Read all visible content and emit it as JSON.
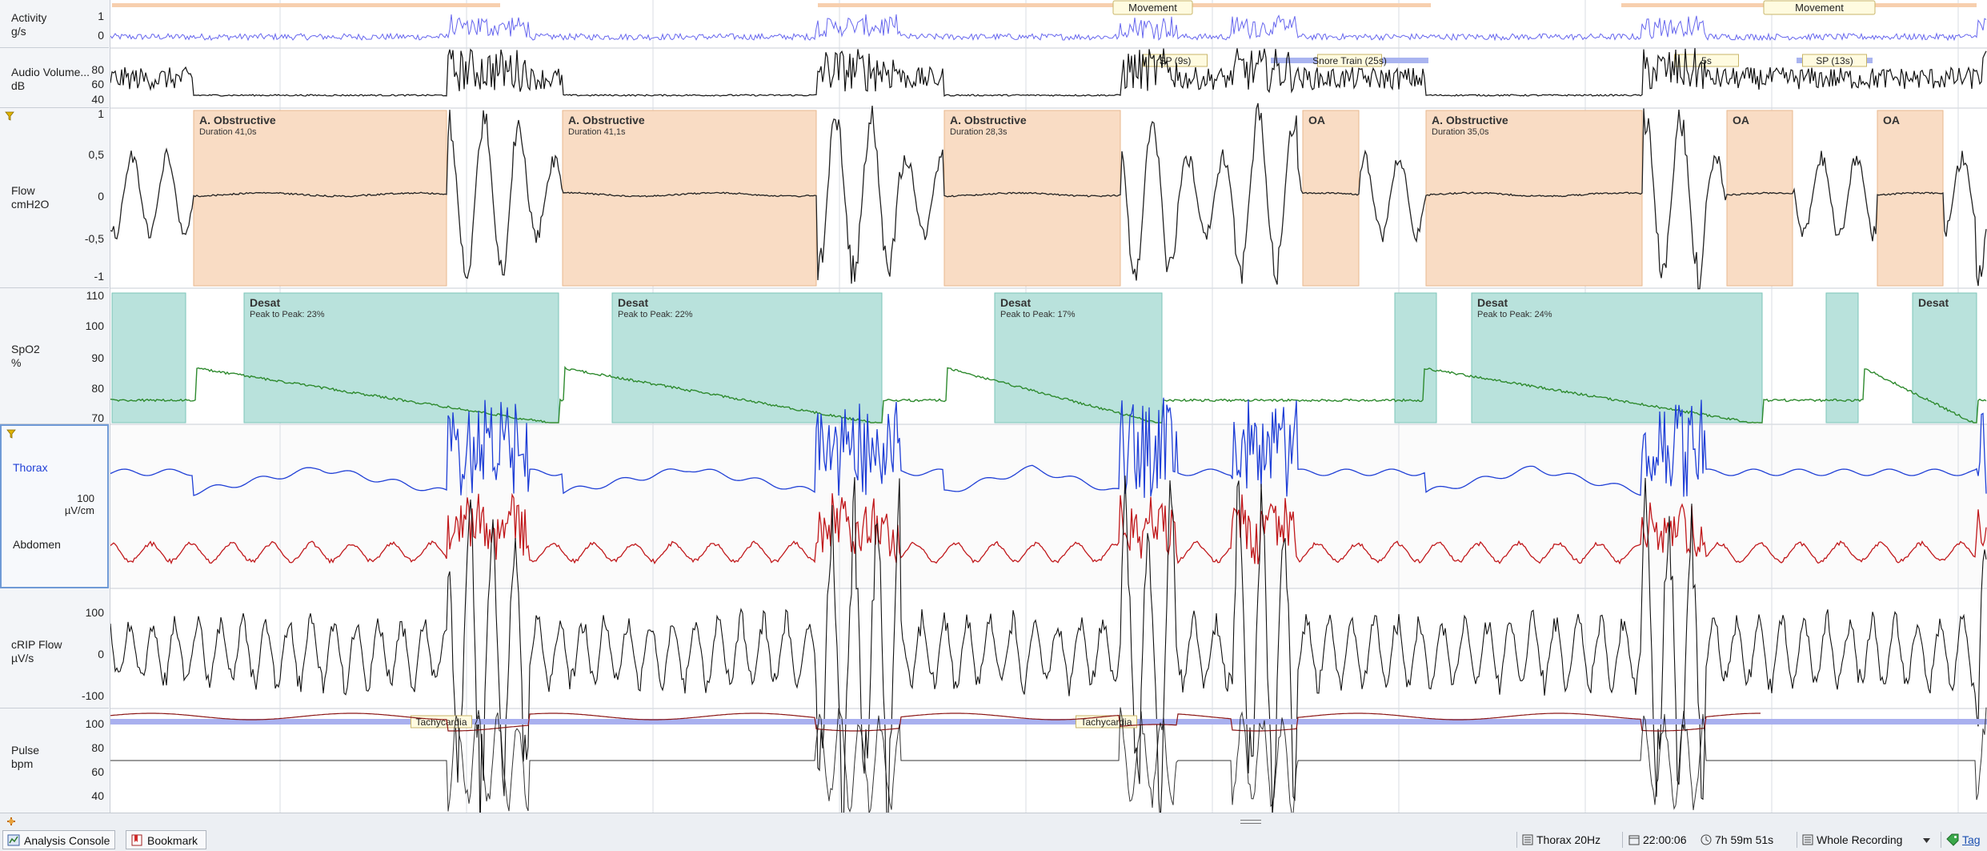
{
  "channels": [
    {
      "id": "activity",
      "name": "Activity",
      "unit": "g/s",
      "ticks": [
        "1",
        "0"
      ]
    },
    {
      "id": "audio",
      "name": "Audio Volume...",
      "unit": "dB",
      "ticks": [
        "80",
        "60",
        "40"
      ]
    },
    {
      "id": "flow",
      "name": "Flow",
      "unit": "cmH2O",
      "ticks": [
        "1",
        "0,5",
        "0",
        "-0,5",
        "-1"
      ]
    },
    {
      "id": "spo2",
      "name": "SpO2",
      "unit": "%",
      "ticks": [
        "110",
        "100",
        "90",
        "80",
        "70"
      ]
    },
    {
      "id": "effort",
      "name": "Thorax",
      "name2": "Abdomen",
      "unit": "µV/cm",
      "scale": "100"
    },
    {
      "id": "crip",
      "name": "cRIP Flow",
      "unit": "µV/s",
      "ticks": [
        "100",
        "0",
        "-100"
      ]
    },
    {
      "id": "pulse",
      "name": "Pulse",
      "unit": "bpm",
      "ticks": [
        "100",
        "80",
        "60",
        "40"
      ]
    }
  ],
  "events": {
    "movement_label": "Movement",
    "audio_tags": [
      "SP (9s)",
      "Snore Train (25s)",
      "5s",
      "SP (13s)"
    ],
    "obstructive": [
      {
        "title": "A. Obstructive",
        "duration": "Duration 41,0s"
      },
      {
        "title": "A. Obstructive",
        "duration": "Duration 41,1s"
      },
      {
        "title": "A. Obstructive",
        "duration": "Duration 28,3s"
      },
      {
        "title": "A. Obstructive",
        "duration": "Duration 35,0s"
      }
    ],
    "oa_label": "OA",
    "desat": [
      {
        "title": "Desat",
        "sub": "Peak to Peak: 23%"
      },
      {
        "title": "Desat",
        "sub": "Peak to Peak: 22%"
      },
      {
        "title": "Desat",
        "sub": "Peak to Peak: 17%"
      },
      {
        "title": "Desat",
        "sub": "Peak to Peak: 24%"
      },
      {
        "title": "Desat",
        "sub": ""
      }
    ],
    "tachycardia": "Tachycardia"
  },
  "bottom_tabs": [
    {
      "label": "Analysis Console",
      "icon": "analysis-console-icon"
    },
    {
      "label": "Bookmark",
      "icon": "bookmark-icon"
    }
  ],
  "status": {
    "channel": "Thorax 20Hz",
    "clock": "22:00:06",
    "duration": "7h 59m 51s",
    "range": "Whole Recording",
    "tag": "Tag"
  },
  "colors": {
    "obstructive": "#f9dcc4",
    "desat": "#b9e2dc",
    "activity": "#6666ee",
    "thorax": "#1f3fd6",
    "abdomen": "#c0181b",
    "spo2_line": "#2e8a2e",
    "pulse_band": "#a9b0ef"
  }
}
